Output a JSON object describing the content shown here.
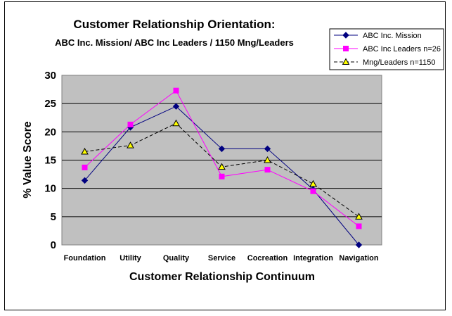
{
  "chart_data": {
    "type": "line",
    "title": "Customer Relationship Orientation:",
    "subtitle": "ABC Inc. Mission/ ABC Inc Leaders / 1150 Mng/Leaders",
    "xlabel": "Customer Relationship Continuum",
    "ylabel": "% Value Score",
    "ylim": [
      0,
      30
    ],
    "yticks": [
      "0",
      "5",
      "10",
      "15",
      "20",
      "25",
      "30"
    ],
    "grid": true,
    "legend_position": "top-right",
    "categories": [
      "Foundation",
      "Utility",
      "Quality",
      "Service",
      "Cocreation",
      "Integration",
      "Navigation"
    ],
    "series": [
      {
        "name": "ABC Inc. Mission",
        "values": [
          11.4,
          20.8,
          24.5,
          17.0,
          17.0,
          9.8,
          0.0
        ],
        "color": "#000080",
        "marker": "diamond",
        "dash": "solid"
      },
      {
        "name": "ABC Inc  Leaders n=26",
        "values": [
          13.7,
          21.3,
          27.3,
          12.1,
          13.3,
          9.5,
          3.3
        ],
        "color": "#ff00ff",
        "marker": "square",
        "dash": "solid"
      },
      {
        "name": "Mng/Leaders n=1150",
        "values": [
          16.5,
          17.6,
          21.5,
          13.8,
          15.0,
          10.8,
          5.0
        ],
        "color": "#000000",
        "marker": "triangle",
        "dash": "dashed",
        "marker_fill": "#ffff00"
      }
    ],
    "plot_background": "#c0c0c0"
  }
}
